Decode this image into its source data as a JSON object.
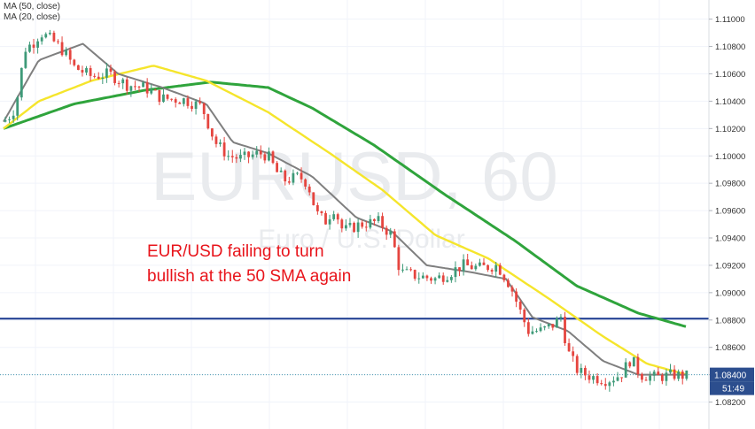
{
  "chart_data": {
    "type": "candlestick",
    "symbol": "EURUSD",
    "interval": "60",
    "description": "Euro / U.S. Dollar",
    "indicators": [
      {
        "label": "MA (50, close)",
        "color": "#f5e52c"
      },
      {
        "label": "MA (20, close)",
        "color": "#7f7f7f"
      }
    ],
    "long_ma_color": "#2fa43c",
    "annotation": [
      "EUR/USD failing to turn",
      "bullish at the 50 SMA again"
    ],
    "annotation_color": "#e8141b",
    "horizontal_line": {
      "value": 1.0881,
      "color": "#1a3a8f"
    },
    "current_price": {
      "value": "1.08400",
      "countdown": "51:49",
      "color": "#2c4e8e"
    },
    "y_axis": {
      "min": 1.081,
      "max": 1.1114,
      "ticks": [
        "1.11000",
        "1.10800",
        "1.10600",
        "1.10400",
        "1.10200",
        "1.10000",
        "1.09800",
        "1.09600",
        "1.09400",
        "1.09200",
        "1.09000",
        "1.08800",
        "1.08600",
        "1.08400",
        "1.08200"
      ]
    },
    "up_color": "#3e9a78",
    "down_color": "#e5453f",
    "price_path": [
      [
        0,
        1.1025
      ],
      [
        8,
        1.103
      ],
      [
        14,
        1.1036
      ],
      [
        24,
        1.1078
      ],
      [
        34,
        1.1083
      ],
      [
        42,
        1.109
      ],
      [
        52,
        1.1086
      ],
      [
        60,
        1.1082
      ],
      [
        70,
        1.1075
      ],
      [
        80,
        1.1065
      ],
      [
        100,
        1.1058
      ],
      [
        120,
        1.106
      ],
      [
        140,
        1.1052
      ],
      [
        160,
        1.105
      ],
      [
        180,
        1.1042
      ],
      [
        205,
        1.1041
      ],
      [
        225,
        1.1036
      ],
      [
        240,
        1.101
      ],
      [
        255,
        1.1
      ],
      [
        270,
        1.0998
      ],
      [
        290,
        1.1002
      ],
      [
        300,
        1.1
      ],
      [
        310,
        1.0988
      ],
      [
        320,
        1.0982
      ],
      [
        335,
        1.0985
      ],
      [
        345,
        1.098
      ],
      [
        355,
        1.0958
      ],
      [
        365,
        1.0952
      ],
      [
        375,
        1.0962
      ],
      [
        385,
        1.0945
      ],
      [
        405,
        1.095
      ],
      [
        425,
        1.0952
      ],
      [
        440,
        1.0942
      ],
      [
        450,
        1.0915
      ],
      [
        470,
        1.0912
      ],
      [
        490,
        1.091
      ],
      [
        505,
        1.0914
      ],
      [
        520,
        1.092
      ],
      [
        540,
        1.0918
      ],
      [
        560,
        1.092
      ],
      [
        575,
        1.0905
      ],
      [
        585,
        1.0888
      ],
      [
        595,
        1.0872
      ],
      [
        610,
        1.0872
      ],
      [
        625,
        1.0877
      ],
      [
        632,
        1.0883
      ],
      [
        640,
        1.0857
      ],
      [
        652,
        1.0842
      ],
      [
        670,
        1.0838
      ],
      [
        685,
        1.0836
      ],
      [
        700,
        1.084
      ],
      [
        712,
        1.0852
      ],
      [
        722,
        1.084
      ],
      [
        740,
        1.0838
      ],
      [
        760,
        1.084
      ],
      [
        775,
        1.0839
      ]
    ],
    "ma20_path": [
      [
        0,
        1.1025
      ],
      [
        40,
        1.107
      ],
      [
        90,
        1.1082
      ],
      [
        130,
        1.106
      ],
      [
        180,
        1.105
      ],
      [
        230,
        1.1038
      ],
      [
        260,
        1.101
      ],
      [
        300,
        1.1002
      ],
      [
        350,
        1.0985
      ],
      [
        400,
        1.0955
      ],
      [
        440,
        1.0945
      ],
      [
        480,
        1.092
      ],
      [
        530,
        1.0915
      ],
      [
        570,
        1.091
      ],
      [
        600,
        1.0882
      ],
      [
        640,
        1.0872
      ],
      [
        680,
        1.085
      ],
      [
        720,
        1.084
      ],
      [
        775,
        1.084
      ]
    ],
    "ma50_path": [
      [
        0,
        1.102
      ],
      [
        40,
        1.104
      ],
      [
        100,
        1.1055
      ],
      [
        170,
        1.1066
      ],
      [
        230,
        1.1055
      ],
      [
        300,
        1.1032
      ],
      [
        370,
        1.1002
      ],
      [
        430,
        1.0975
      ],
      [
        490,
        1.0942
      ],
      [
        550,
        1.0925
      ],
      [
        620,
        1.0895
      ],
      [
        680,
        1.0868
      ],
      [
        730,
        1.0848
      ],
      [
        775,
        1.084
      ]
    ],
    "ma100_path": [
      [
        0,
        1.102
      ],
      [
        80,
        1.1038
      ],
      [
        160,
        1.1048
      ],
      [
        235,
        1.1054
      ],
      [
        300,
        1.105
      ],
      [
        350,
        1.1035
      ],
      [
        420,
        1.1008
      ],
      [
        500,
        1.0972
      ],
      [
        580,
        1.0938
      ],
      [
        650,
        1.0905
      ],
      [
        720,
        1.0885
      ],
      [
        775,
        1.0875
      ]
    ]
  }
}
